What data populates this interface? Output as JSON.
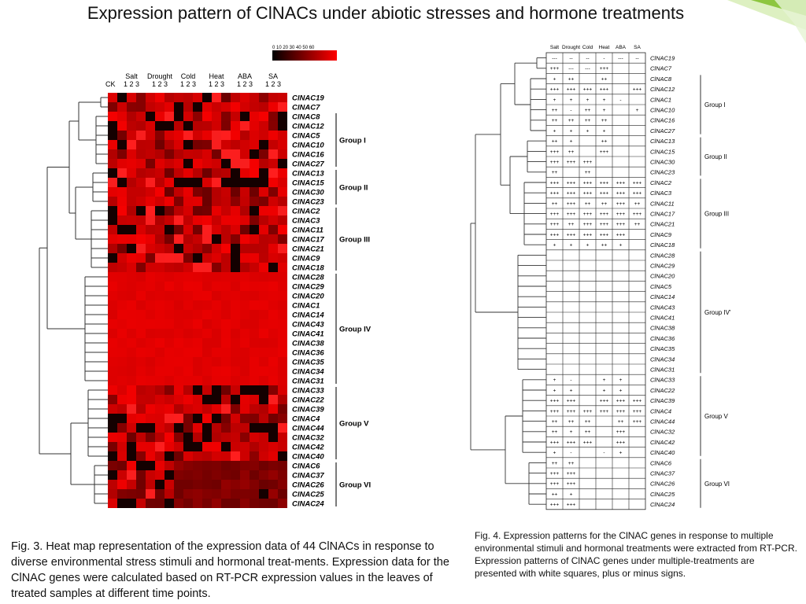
{
  "title": "Expression pattern of ClNACs under abiotic stresses and hormone treatments",
  "fig3": {
    "caption": "Fig. 3. Heat map representation of the expression data of 44 ClNACs in response to diverse environmental stress stimuli and hormonal treat-ments. Expression data for the ClNAC genes were calculated based on RT-PCR expression values in the leaves of treated samples at different time points.",
    "scale_ticks": "0 10 20 30 40 50 60",
    "ck_label": "CK",
    "treatments": [
      "Salt",
      "Drought",
      "Cold",
      "Heat",
      "ABA",
      "SA"
    ],
    "timepoints": "1 2 3",
    "genes": [
      "ClNAC19",
      "ClNAC7",
      "ClNAC8",
      "ClNAC12",
      "ClNAC5",
      "ClNAC10",
      "ClNAC16",
      "ClNAC27",
      "ClNAC13",
      "ClNAC15",
      "ClNAC30",
      "ClNAC23",
      "ClNAC2",
      "ClNAC3",
      "ClNAC11",
      "ClNAC17",
      "ClNAC21",
      "ClNAC9",
      "ClNAC18",
      "ClNAC28",
      "ClNAC29",
      "ClNAC20",
      "ClNAC1",
      "ClNAC14",
      "ClNAC43",
      "ClNAC41",
      "ClNAC38",
      "ClNAC36",
      "ClNAC35",
      "ClNAC34",
      "ClNAC31",
      "ClNAC33",
      "ClNAC22",
      "ClNAC39",
      "ClNAC4",
      "ClNAC44",
      "ClNAC32",
      "ClNAC42",
      "ClNAC40",
      "ClNAC6",
      "ClNAC37",
      "ClNAC26",
      "ClNAC25",
      "ClNAC24"
    ],
    "groups": [
      {
        "label": "Group I",
        "from": 2,
        "to": 7
      },
      {
        "label": "Group II",
        "from": 8,
        "to": 11
      },
      {
        "label": "Group III",
        "from": 12,
        "to": 18
      },
      {
        "label": "Group IV",
        "from": 19,
        "to": 30
      },
      {
        "label": "Group V",
        "from": 31,
        "to": 38
      },
      {
        "label": "Group VI",
        "from": 39,
        "to": 43
      }
    ]
  },
  "fig4": {
    "caption": "Fig. 4. Expression patterns for the ClNAC genes in response to multiple environmental stimuli and hormonal treatments were extracted from RT-PCR. Expression patterns of ClNAC genes under multiple-treatments are presented with white squares, plus or minus signs.",
    "treatments": [
      "Salt",
      "Drought",
      "Cold",
      "Heat",
      "ABA",
      "SA"
    ],
    "genes": [
      "ClNAC19",
      "ClNAC7",
      "ClNAC8",
      "ClNAC12",
      "ClNAC1",
      "ClNAC10",
      "ClNAC16",
      "ClNAC27",
      "ClNAC13",
      "ClNAC15",
      "ClNAC30",
      "ClNAC23",
      "ClNAC2",
      "ClNAC3",
      "ClNAC11",
      "ClNAC17",
      "ClNAC21",
      "ClNAC9",
      "ClNAC18",
      "ClNAC28",
      "ClNAC29",
      "ClNAC20",
      "ClNAC5",
      "ClNAC14",
      "ClNAC43",
      "ClNAC41",
      "ClNAC38",
      "ClNAC36",
      "ClNAC35",
      "ClNAC34",
      "ClNAC31",
      "ClNAC33",
      "ClNAC22",
      "ClNAC39",
      "ClNAC4",
      "ClNAC44",
      "ClNAC32",
      "ClNAC42",
      "ClNAC40",
      "ClNAC6",
      "ClNAC37",
      "ClNAC26",
      "ClNAC25",
      "ClNAC24"
    ],
    "cells": [
      [
        "---",
        "--",
        "--",
        "-",
        "---",
        "--"
      ],
      [
        "+++",
        "---",
        "---",
        "+++",
        "",
        ""
      ],
      [
        "+",
        "++",
        "",
        "++",
        "",
        ""
      ],
      [
        "+++",
        "+++",
        "+++",
        "+++",
        "",
        "+++"
      ],
      [
        "+",
        "+",
        "+",
        "+",
        "-",
        ""
      ],
      [
        "++",
        "-",
        "++",
        "+",
        "",
        "+"
      ],
      [
        "++",
        "++",
        "++",
        "++",
        "",
        ""
      ],
      [
        "+",
        "+",
        "+",
        "+",
        "",
        ""
      ],
      [
        "++",
        "+",
        "",
        "++",
        "",
        ""
      ],
      [
        "+++",
        "++",
        "",
        "+++",
        "",
        ""
      ],
      [
        "+++",
        "+++",
        "+++",
        "",
        "",
        ""
      ],
      [
        "++",
        "",
        "++",
        "",
        "",
        ""
      ],
      [
        "+++",
        "+++",
        "+++",
        "+++",
        "+++",
        "+++"
      ],
      [
        "+++",
        "+++",
        "+++",
        "+++",
        "+++",
        "+++"
      ],
      [
        "++",
        "+++",
        "++",
        "++",
        "+++",
        "++"
      ],
      [
        "+++",
        "+++",
        "+++",
        "+++",
        "+++",
        "+++"
      ],
      [
        "+++",
        "++",
        "+++",
        "+++",
        "+++",
        "++"
      ],
      [
        "+++",
        "+++",
        "+++",
        "+++",
        "+++",
        ""
      ],
      [
        "+",
        "+",
        "+",
        "++",
        "+",
        ""
      ],
      [
        "",
        "",
        "",
        "",
        "",
        ""
      ],
      [
        "",
        "",
        "",
        "",
        "",
        ""
      ],
      [
        "",
        "",
        "",
        "",
        "",
        ""
      ],
      [
        "",
        "",
        "",
        "",
        "",
        ""
      ],
      [
        "",
        "",
        "",
        "",
        "",
        ""
      ],
      [
        "",
        "",
        "",
        "",
        "",
        ""
      ],
      [
        "",
        "",
        "",
        "",
        "",
        ""
      ],
      [
        "",
        "",
        "",
        "",
        "",
        ""
      ],
      [
        "",
        "",
        "",
        "",
        "",
        ""
      ],
      [
        "",
        "",
        "",
        "",
        "",
        ""
      ],
      [
        "",
        "",
        "",
        "",
        "",
        ""
      ],
      [
        "",
        "",
        "",
        "",
        "",
        ""
      ],
      [
        "+",
        "-",
        "",
        "+",
        "+",
        ""
      ],
      [
        "+",
        "+",
        "",
        "+",
        "+",
        ""
      ],
      [
        "+++",
        "+++",
        "",
        "+++",
        "+++",
        "+++"
      ],
      [
        "+++",
        "+++",
        "+++",
        "+++",
        "+++",
        "+++"
      ],
      [
        "++",
        "++",
        "++",
        "",
        "++",
        "+++"
      ],
      [
        "++",
        "+",
        "++",
        "",
        "+++",
        ""
      ],
      [
        "+++",
        "+++",
        "+++",
        "",
        "+++",
        ""
      ],
      [
        "+",
        "-",
        "",
        "-",
        "+",
        ""
      ],
      [
        "++",
        "++",
        "",
        "",
        "",
        ""
      ],
      [
        "+++",
        "+++",
        "",
        "",
        "",
        ""
      ],
      [
        "+++",
        "+++",
        "",
        "",
        "",
        ""
      ],
      [
        "++",
        "+",
        "",
        "",
        "",
        ""
      ],
      [
        "+++",
        "+++",
        "",
        "",
        "",
        ""
      ]
    ],
    "groups": [
      {
        "label": "Group I",
        "from": 2,
        "to": 7
      },
      {
        "label": "Group II",
        "from": 8,
        "to": 11
      },
      {
        "label": "Group III",
        "from": 12,
        "to": 18
      },
      {
        "label": "Group IV'",
        "from": 19,
        "to": 30
      },
      {
        "label": "Group V",
        "from": 31,
        "to": 38
      },
      {
        "label": "Group VI",
        "from": 39,
        "to": 43
      }
    ]
  }
}
